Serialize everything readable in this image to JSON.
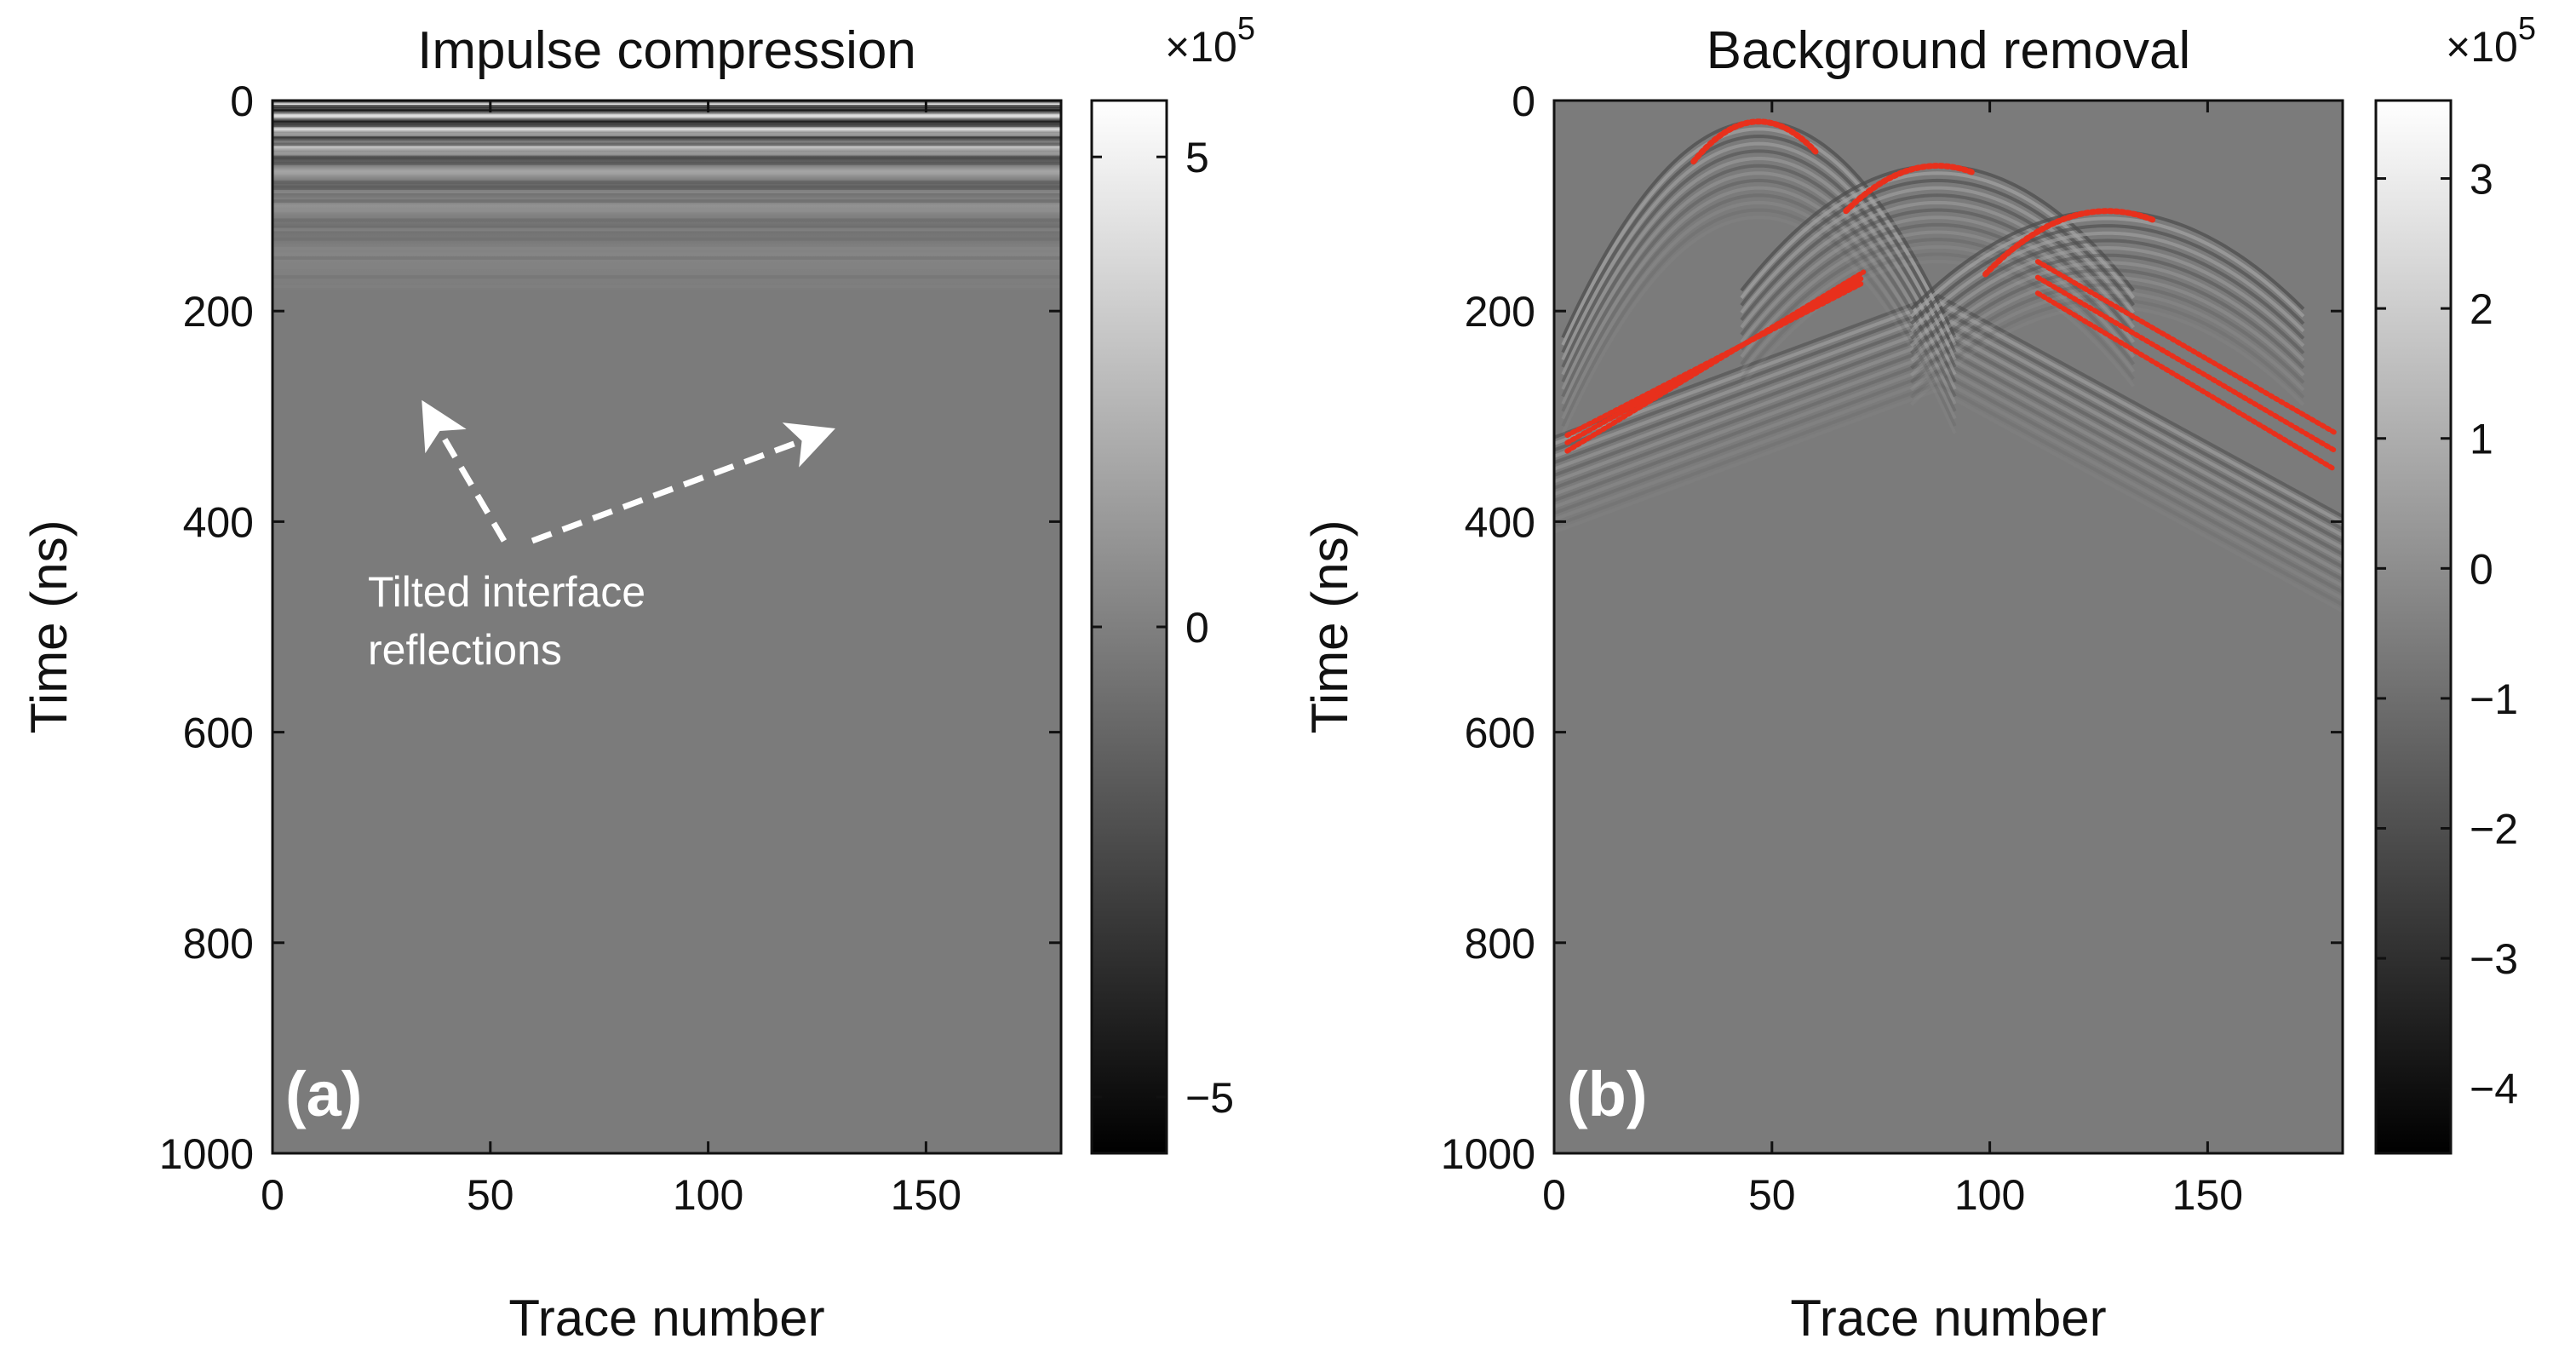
{
  "chart_data": [
    {
      "type": "heatmap",
      "panel_label": "(a)",
      "title": "Impulse compression",
      "xlabel": "Trace number",
      "ylabel": "Time (ns)",
      "xlim": [
        0,
        181
      ],
      "ylim": [
        1000,
        0
      ],
      "xticks": [
        "0",
        "50",
        "100",
        "150"
      ],
      "xtick_values": [
        0,
        50,
        100,
        150
      ],
      "yticks": [
        "0",
        "200",
        "400",
        "600",
        "800",
        "1000"
      ],
      "ytick_values": [
        0,
        200,
        400,
        600,
        800,
        1000
      ],
      "colorbar": {
        "multiplier": "×10",
        "exponent": "5",
        "range": [
          -5.6,
          5.6
        ],
        "ticks": [
          "5",
          "0",
          "−5"
        ],
        "tick_values": [
          5,
          0,
          -5
        ]
      },
      "annotation": {
        "lines": [
          "Tilted interface",
          "reflections"
        ]
      },
      "features": {
        "direct_wave_bands_ns": [
          0,
          180
        ]
      }
    },
    {
      "type": "heatmap",
      "panel_label": "(b)",
      "title": "Background removal",
      "xlabel": "Trace number",
      "ylabel": "Time (ns)",
      "xlim": [
        0,
        181
      ],
      "ylim": [
        1000,
        0
      ],
      "xticks": [
        "0",
        "50",
        "100",
        "150"
      ],
      "xtick_values": [
        0,
        50,
        100,
        150
      ],
      "yticks": [
        "0",
        "200",
        "400",
        "600",
        "800",
        "1000"
      ],
      "ytick_values": [
        0,
        200,
        400,
        600,
        800,
        1000
      ],
      "colorbar": {
        "multiplier": "×10",
        "exponent": "5",
        "range": [
          -4.5,
          3.6
        ],
        "ticks": [
          "3",
          "2",
          "1",
          "0",
          "−1",
          "−2",
          "−3",
          "−4"
        ],
        "tick_values": [
          3,
          2,
          1,
          0,
          -1,
          -2,
          -3,
          -4
        ]
      },
      "hyperbolas": [
        {
          "apex_trace": 47,
          "apex_time": 20,
          "trace_range": [
            32,
            60
          ],
          "end_time": 58
        },
        {
          "apex_trace": 88,
          "apex_time": 62,
          "trace_range": [
            67,
            96
          ],
          "end_time": 105
        },
        {
          "apex_trace": 127,
          "apex_time": 105,
          "trace_range": [
            99,
            138
          ],
          "end_time": 165
        }
      ],
      "picked_lines": [
        {
          "from": [
            3,
            333
          ],
          "to": [
            71,
            163
          ]
        },
        {
          "from": [
            3,
            325
          ],
          "to": [
            71,
            168
          ]
        },
        {
          "from": [
            3,
            318
          ],
          "to": [
            71,
            173
          ]
        },
        {
          "from": [
            111,
            153
          ],
          "to": [
            179,
            315
          ]
        },
        {
          "from": [
            111,
            168
          ],
          "to": [
            179,
            332
          ]
        },
        {
          "from": [
            111,
            183
          ],
          "to": [
            179,
            350
          ]
        }
      ],
      "reflector": {
        "left": [
          0,
          360
        ],
        "apex": [
          88,
          185
        ],
        "right": [
          181,
          405
        ]
      }
    }
  ]
}
